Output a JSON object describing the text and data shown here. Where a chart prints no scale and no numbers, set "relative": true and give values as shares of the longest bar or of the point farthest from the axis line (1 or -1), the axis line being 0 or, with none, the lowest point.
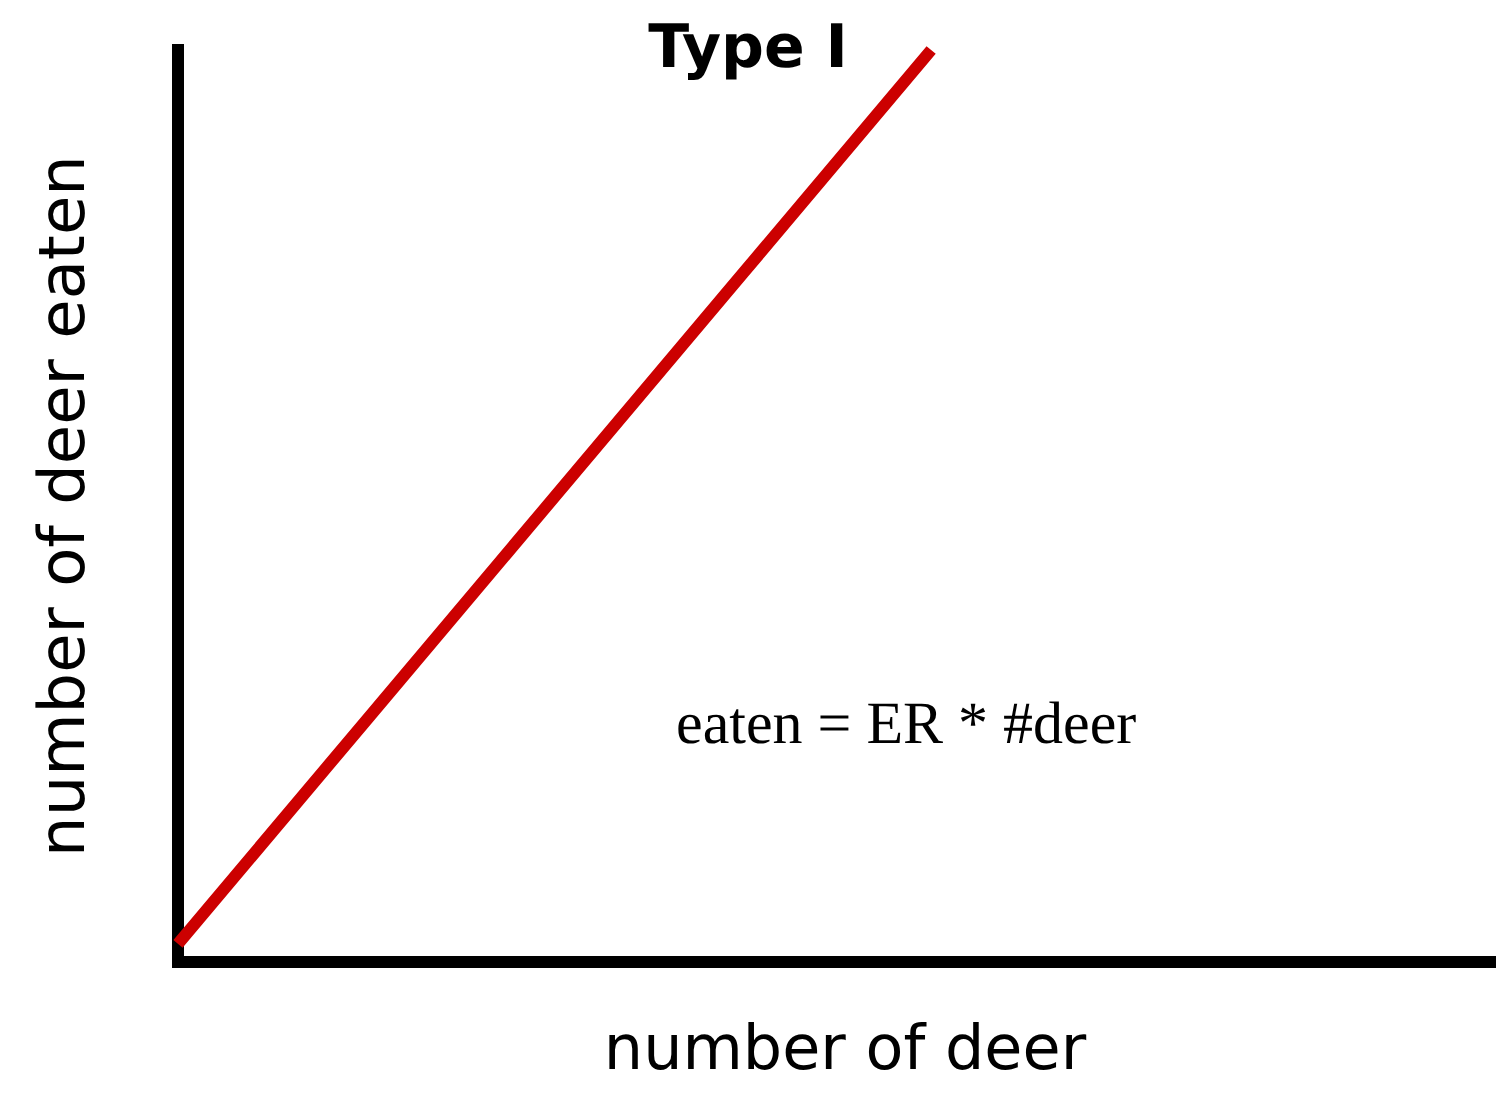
{
  "chart_data": {
    "type": "line",
    "title": "Type I",
    "xlabel": "number of deer",
    "ylabel": "number of deer eaten",
    "annotations": [
      "eaten = ER * #deer"
    ],
    "categories": [
      null,
      null,
      null,
      null,
      null,
      null,
      null,
      null
    ],
    "relative": true,
    "series": [
      {
        "color": "#cc0000",
        "values": [
          0.02,
          0.265,
          0.51,
          0.755,
          1,
          null,
          null,
          null
        ]
      }
    ]
  }
}
